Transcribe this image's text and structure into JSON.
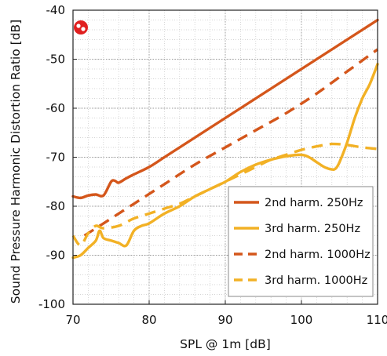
{
  "chart_data": {
    "type": "line",
    "title": "",
    "xlabel": "SPL @ 1m [dB]",
    "ylabel": "Sound Pressure Harmonic Distortion Ratio [dB]",
    "xlim": [
      70,
      110
    ],
    "ylim": [
      -100,
      -40
    ],
    "xticks": [
      70,
      80,
      90,
      100,
      110
    ],
    "yticks": [
      -40,
      -50,
      -60,
      -70,
      -80,
      -90,
      -100
    ],
    "grid": "dotted minor + major",
    "legend_position": "bottom-right",
    "series": [
      {
        "name": "2nd harm. 250Hz",
        "color": "#d4561b",
        "style": "solid",
        "x": [
          70,
          71,
          72,
          73,
          74,
          75,
          75.5,
          76,
          77,
          78,
          80,
          82,
          84,
          86,
          88,
          90,
          92,
          94,
          96,
          98,
          100,
          102,
          104,
          106,
          108,
          110
        ],
        "y": [
          -78,
          -78.3,
          -77.8,
          -77.6,
          -77.8,
          -75,
          -74.8,
          -75.2,
          -74.3,
          -73.5,
          -72,
          -70,
          -68,
          -66,
          -64,
          -62,
          -60,
          -58,
          -56,
          -54,
          -52,
          -50,
          -48,
          -46,
          -44,
          -42
        ]
      },
      {
        "name": "3rd harm. 250Hz",
        "color": "#f2b125",
        "style": "solid",
        "x": [
          70,
          71,
          72,
          73,
          73.5,
          74,
          75,
          76,
          77,
          78,
          79,
          80,
          82,
          84,
          86,
          88,
          90,
          92,
          94,
          96,
          98,
          100,
          101,
          102,
          103,
          104,
          104.5,
          105,
          106,
          107,
          108,
          109,
          110
        ],
        "y": [
          -90.5,
          -90,
          -88.5,
          -87,
          -85,
          -86.5,
          -87,
          -87.5,
          -88,
          -85,
          -84,
          -83.5,
          -81.5,
          -80,
          -78,
          -76.5,
          -75,
          -73,
          -71.5,
          -70.5,
          -69.8,
          -69.5,
          -70,
          -71,
          -72,
          -72.5,
          -72.3,
          -71,
          -67,
          -62,
          -58,
          -55,
          -51
        ]
      },
      {
        "name": "2nd harm. 1000Hz",
        "color": "#d4561b",
        "style": "dashed",
        "x": [
          71.5,
          74,
          78,
          82,
          86,
          90,
          94,
          98,
          102,
          106,
          110
        ],
        "y": [
          -86,
          -83.5,
          -79.5,
          -75.5,
          -71.5,
          -68,
          -64.5,
          -61,
          -57,
          -52.5,
          -48
        ]
      },
      {
        "name": "3rd harm. 1000Hz",
        "color": "#f2b125",
        "style": "dashed",
        "x": [
          70,
          71,
          72,
          73,
          74,
          76,
          78,
          80,
          82,
          84,
          86,
          88,
          90,
          92,
          94,
          96,
          98,
          100,
          102,
          104,
          106,
          108,
          110
        ],
        "y": [
          -86,
          -88,
          -85.5,
          -84,
          -84.5,
          -84,
          -82.5,
          -81.5,
          -80.5,
          -79.5,
          -78,
          -76.5,
          -75,
          -73.5,
          -72,
          -70.5,
          -69.5,
          -68.5,
          -67.8,
          -67.3,
          -67.5,
          -68,
          -68.3
        ]
      }
    ]
  }
}
